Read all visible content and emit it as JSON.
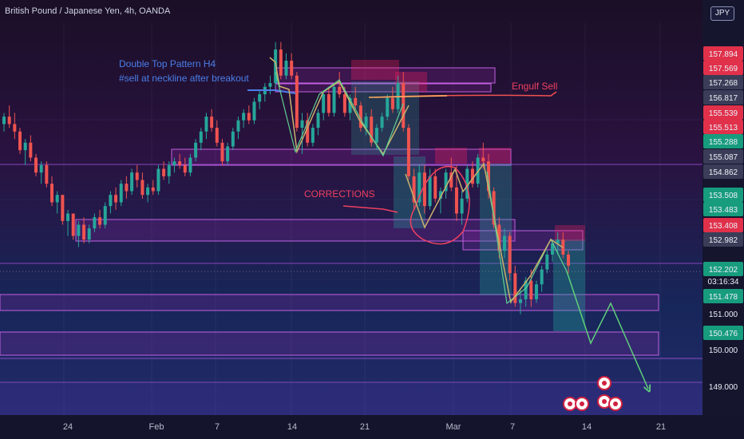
{
  "title": "British Pound / Japanese Yen, 4h, OANDA",
  "currency_badge": "JPY",
  "colors": {
    "up": "#26a69a",
    "down": "#ef5350",
    "zone": "#9c27b0",
    "arrow": "#4caf50",
    "annotation_blue": "#4a7ee8",
    "annotation_red": "#ef4060",
    "engulf_zone": "#ff2060"
  },
  "chart_data": {
    "type": "candlestick",
    "instrument": "British Pound / Japanese Yen",
    "timeframe": "4h",
    "source": "OANDA",
    "price_axis": {
      "labels": [
        {
          "value": 157.894,
          "text": "157.894",
          "kind": "red"
        },
        {
          "value": 157.569,
          "text": "157.569",
          "kind": "red"
        },
        {
          "value": 157.268,
          "text": "157.268",
          "kind": "gray"
        },
        {
          "value": 156.817,
          "text": "156.817",
          "kind": "gray"
        },
        {
          "value": 155.539,
          "text": "155.539",
          "kind": "red"
        },
        {
          "value": 155.513,
          "text": "155.513",
          "kind": "red"
        },
        {
          "value": 155.288,
          "text": "155.288",
          "kind": "green"
        },
        {
          "value": 155.087,
          "text": "155.087",
          "kind": "gray"
        },
        {
          "value": 154.862,
          "text": "154.862",
          "kind": "gray"
        },
        {
          "value": 153.508,
          "text": "153.508",
          "kind": "green"
        },
        {
          "value": 153.483,
          "text": "153.483",
          "kind": "green"
        },
        {
          "value": 153.408,
          "text": "153.408",
          "kind": "red"
        },
        {
          "value": 152.982,
          "text": "152.982",
          "kind": "gray"
        },
        {
          "value": 152.202,
          "text": "152.202",
          "kind": "green"
        },
        {
          "value": 151.478,
          "text": "151.478",
          "kind": "green"
        },
        {
          "value": 151.0,
          "text": "151.000",
          "kind": "plain"
        },
        {
          "value": 150.476,
          "text": "150.476",
          "kind": "green"
        },
        {
          "value": 150.0,
          "text": "150.000",
          "kind": "plain"
        },
        {
          "value": 149.0,
          "text": "149.000",
          "kind": "plain"
        }
      ],
      "countdown": "03:16:34"
    },
    "time_axis": [
      "24",
      "Feb",
      "7",
      "14",
      "21",
      "Mar",
      "7",
      "14",
      "21"
    ],
    "annotations": [
      "Double Top Pattern H4",
      "#sell at neckline after breakout",
      "Engulf Sell",
      "CORRECTIONS"
    ],
    "candles": [
      [
        156.0,
        156.3,
        155.8,
        156.2
      ],
      [
        156.2,
        156.5,
        155.9,
        156.0
      ],
      [
        156.0,
        156.3,
        155.6,
        155.8
      ],
      [
        155.8,
        155.9,
        155.2,
        155.3
      ],
      [
        155.3,
        155.6,
        154.9,
        155.5
      ],
      [
        155.5,
        155.7,
        155.0,
        155.1
      ],
      [
        155.1,
        155.2,
        154.6,
        154.7
      ],
      [
        154.7,
        155.0,
        154.4,
        154.9
      ],
      [
        154.9,
        155.0,
        154.3,
        154.4
      ],
      [
        154.4,
        154.6,
        153.8,
        153.9
      ],
      [
        153.9,
        154.2,
        153.6,
        154.1
      ],
      [
        154.1,
        154.1,
        153.3,
        153.4
      ],
      [
        153.4,
        153.7,
        153.0,
        153.6
      ],
      [
        153.6,
        153.6,
        152.9,
        153.0
      ],
      [
        153.0,
        153.4,
        152.7,
        153.3
      ],
      [
        153.3,
        153.5,
        152.8,
        152.9
      ],
      [
        152.9,
        153.3,
        152.8,
        153.2
      ],
      [
        153.2,
        153.6,
        153.1,
        153.5
      ],
      [
        153.5,
        153.7,
        153.2,
        153.3
      ],
      [
        153.3,
        153.9,
        153.2,
        153.8
      ],
      [
        153.8,
        154.2,
        153.6,
        154.1
      ],
      [
        154.1,
        154.3,
        153.7,
        153.9
      ],
      [
        153.9,
        154.5,
        153.8,
        154.4
      ],
      [
        154.4,
        154.6,
        154.0,
        154.2
      ],
      [
        154.2,
        154.8,
        154.1,
        154.7
      ],
      [
        154.7,
        154.9,
        154.3,
        154.5
      ],
      [
        154.5,
        154.7,
        154.0,
        154.1
      ],
      [
        154.1,
        154.4,
        153.9,
        154.3
      ],
      [
        154.3,
        154.5,
        154.1,
        154.2
      ],
      [
        154.2,
        154.9,
        154.1,
        154.8
      ],
      [
        154.8,
        155.0,
        154.5,
        154.6
      ],
      [
        154.6,
        155.0,
        154.4,
        154.9
      ],
      [
        154.9,
        155.1,
        154.7,
        155.0
      ],
      [
        155.0,
        155.2,
        154.8,
        154.9
      ],
      [
        154.9,
        155.1,
        154.6,
        154.7
      ],
      [
        154.7,
        155.2,
        154.6,
        155.1
      ],
      [
        155.1,
        155.6,
        155.0,
        155.5
      ],
      [
        155.5,
        155.9,
        155.3,
        155.8
      ],
      [
        155.8,
        156.3,
        155.6,
        156.2
      ],
      [
        156.2,
        156.4,
        155.8,
        155.9
      ],
      [
        155.9,
        156.1,
        155.4,
        155.5
      ],
      [
        155.5,
        155.6,
        154.9,
        155.0
      ],
      [
        155.0,
        155.5,
        154.9,
        155.4
      ],
      [
        155.4,
        155.9,
        155.3,
        155.8
      ],
      [
        155.8,
        156.2,
        155.6,
        156.1
      ],
      [
        156.1,
        156.4,
        155.9,
        156.3
      ],
      [
        156.3,
        156.5,
        156.0,
        156.1
      ],
      [
        156.1,
        156.7,
        156.0,
        156.6
      ],
      [
        156.6,
        156.9,
        156.4,
        156.8
      ],
      [
        156.8,
        157.1,
        156.6,
        157.0
      ],
      [
        157.0,
        157.3,
        156.8,
        157.1
      ],
      [
        157.1,
        158.2,
        157.0,
        158.0
      ],
      [
        158.0,
        158.2,
        157.2,
        157.3
      ],
      [
        157.3,
        157.9,
        157.2,
        157.7
      ],
      [
        157.7,
        157.9,
        157.2,
        157.3
      ],
      [
        157.3,
        157.4,
        155.8,
        155.9
      ],
      [
        155.9,
        156.3,
        155.2,
        156.1
      ],
      [
        156.1,
        156.3,
        155.4,
        155.5
      ],
      [
        155.5,
        156.0,
        155.4,
        155.9
      ],
      [
        155.9,
        156.4,
        155.7,
        156.3
      ],
      [
        156.3,
        156.9,
        156.1,
        156.8
      ],
      [
        156.8,
        157.0,
        156.2,
        156.3
      ],
      [
        156.3,
        157.1,
        156.2,
        157.0
      ],
      [
        157.0,
        157.4,
        156.7,
        156.8
      ],
      [
        156.8,
        157.0,
        156.2,
        156.3
      ],
      [
        156.3,
        156.8,
        156.1,
        156.7
      ],
      [
        156.7,
        157.0,
        156.4,
        156.5
      ],
      [
        156.5,
        156.6,
        155.8,
        155.9
      ],
      [
        155.9,
        156.3,
        155.7,
        156.2
      ],
      [
        156.2,
        156.4,
        155.4,
        155.5
      ],
      [
        155.5,
        156.0,
        155.3,
        155.9
      ],
      [
        155.9,
        156.3,
        155.8,
        156.2
      ],
      [
        156.2,
        156.8,
        156.1,
        156.7
      ],
      [
        156.7,
        157.0,
        156.3,
        156.4
      ],
      [
        156.4,
        157.3,
        156.3,
        157.1
      ],
      [
        157.1,
        157.4,
        155.8,
        155.9
      ],
      [
        155.9,
        156.0,
        154.5,
        154.6
      ],
      [
        154.6,
        154.8,
        153.7,
        153.9
      ],
      [
        153.9,
        154.9,
        153.8,
        154.7
      ],
      [
        154.7,
        154.9,
        153.6,
        153.8
      ],
      [
        153.8,
        154.8,
        153.7,
        154.6
      ],
      [
        154.6,
        154.8,
        153.9,
        154.0
      ],
      [
        154.0,
        154.3,
        153.6,
        154.2
      ],
      [
        154.2,
        154.8,
        154.0,
        154.7
      ],
      [
        154.7,
        155.1,
        154.2,
        154.3
      ],
      [
        154.3,
        154.9,
        153.4,
        153.6
      ],
      [
        153.6,
        154.2,
        153.3,
        154.0
      ],
      [
        154.0,
        154.9,
        153.9,
        154.8
      ],
      [
        154.8,
        155.0,
        154.3,
        154.4
      ],
      [
        154.4,
        155.2,
        154.3,
        155.1
      ],
      [
        155.1,
        155.5,
        154.8,
        155.0
      ],
      [
        155.0,
        155.2,
        154.0,
        154.2
      ],
      [
        154.2,
        154.3,
        153.2,
        153.3
      ],
      [
        153.3,
        153.5,
        152.4,
        152.6
      ],
      [
        152.6,
        153.2,
        152.4,
        153.0
      ],
      [
        153.0,
        153.1,
        151.8,
        152.0
      ],
      [
        152.0,
        152.2,
        151.1,
        151.2
      ],
      [
        151.2,
        151.6,
        150.9,
        151.3
      ],
      [
        151.3,
        151.9,
        151.1,
        151.8
      ],
      [
        151.8,
        152.1,
        151.1,
        151.3
      ],
      [
        151.3,
        151.8,
        151.2,
        151.7
      ],
      [
        151.7,
        152.2,
        151.5,
        152.1
      ],
      [
        152.1,
        152.6,
        152.0,
        152.5
      ],
      [
        152.5,
        152.9,
        152.3,
        152.8
      ],
      [
        152.8,
        153.1,
        152.5,
        152.9
      ],
      [
        152.9,
        153.1,
        152.4,
        152.5
      ],
      [
        152.5,
        152.6,
        152.0,
        152.2
      ]
    ]
  }
}
